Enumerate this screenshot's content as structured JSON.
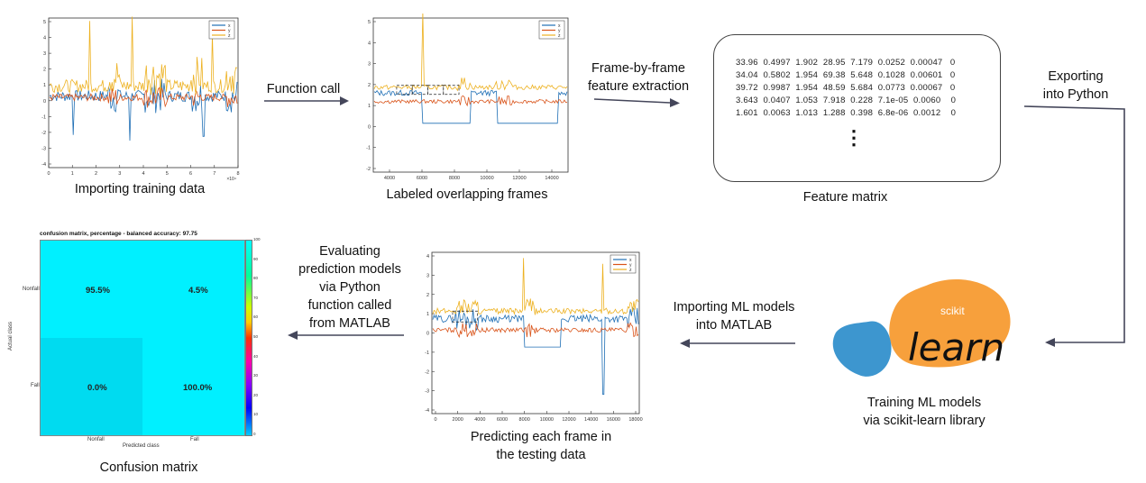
{
  "captions": {
    "importing": "Importing training data",
    "labeled": "Labeled overlapping frames",
    "feature_matrix": "Feature matrix",
    "training": [
      "Training ML models",
      "via scikit-learn library"
    ],
    "predicting": [
      "Predicting each frame in",
      "the testing data"
    ],
    "confusion": "Confusion matrix"
  },
  "arrows": {
    "function_call": [
      "Function call"
    ],
    "frame_by_frame": [
      "Frame-by-frame",
      "feature extraction"
    ],
    "exporting": [
      "Exporting",
      "into Python"
    ],
    "importing_ml": [
      "Importing ML models",
      "into MATLAB"
    ],
    "evaluating": [
      "Evaluating",
      "prediction models",
      "via Python",
      "function called",
      "from MATLAB"
    ]
  },
  "feature_matrix": {
    "rows": [
      "33.96  0.4997  1.902  28.95  7.179  0.0252  0.00047   0",
      "34.04  0.5802  1.954  69.38  5.648  0.1028  0.00601   0",
      "39.72  0.9987  1.954  48.59  5.684  0.0773  0.00067   0",
      "3.643  0.0407  1.053  7.918  0.228  7.1e-05  0.0060    0",
      "1.601  0.0063  1.013  1.288  0.398  6.8e-06  0.0012    0"
    ],
    "ellipsis": "⋮"
  },
  "logo": {
    "small": "scikit",
    "big": "learn",
    "orange": "#f7a03c",
    "blue": "#3d96cf"
  },
  "plots": {
    "legend": [
      "x",
      "y",
      "z"
    ],
    "colors": {
      "x": "#1f6fb5",
      "y": "#d95319",
      "z": "#edb120"
    },
    "p1": {
      "yticks": [
        "5",
        "4",
        "3",
        "2",
        "1",
        "0",
        "-1",
        "-2",
        "-3",
        "-4"
      ],
      "xticks": [
        "0",
        "1",
        "2",
        "3",
        "4",
        "5",
        "6",
        "7",
        "8"
      ],
      "exponent": "×10⁴"
    },
    "p2": {
      "yticks": [
        "5",
        "4",
        "3",
        "2",
        "1",
        "0",
        "-1",
        "-2"
      ],
      "xticks": [
        "4000",
        "6000",
        "8000",
        "10000",
        "12000",
        "14000"
      ]
    },
    "p3": {
      "yticks": [
        "4",
        "3",
        "2",
        "1",
        "0",
        "-1",
        "-2",
        "-3",
        "-4"
      ],
      "xticks": [
        "0",
        "2000",
        "4000",
        "6000",
        "8000",
        "10000",
        "12000",
        "14000",
        "16000",
        "18000"
      ]
    }
  },
  "confusion_matrix": {
    "title": "confusion matrix, percentage - balanced accuracy: 97.75",
    "row_labels": [
      "Nonfall",
      "Fall"
    ],
    "col_labels": [
      "Nonfall",
      "Fall"
    ],
    "ylabel": "Actual class",
    "xlabel": "Predicted class",
    "values": [
      [
        "95.5%",
        "4.5%"
      ],
      [
        "0.0%",
        "100.0%"
      ]
    ],
    "colorbar_ticks": [
      "100",
      "90",
      "80",
      "70",
      "60",
      "50",
      "40",
      "30",
      "20",
      "10",
      "0"
    ],
    "cell_color": "#00f0ff",
    "cell_color_dark": "#00dbf0"
  }
}
